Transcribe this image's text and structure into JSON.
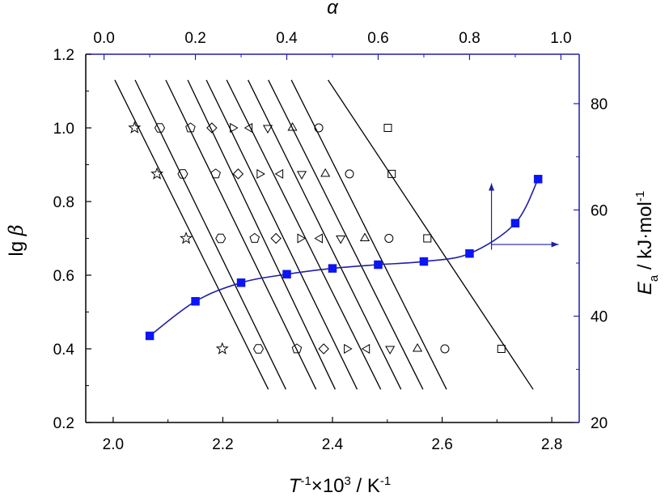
{
  "chart_data": {
    "type": "scatter",
    "axes": {
      "bottom": {
        "label": "T",
        "superscript": "-1",
        "label_rest": "×10",
        "superscript2": "3",
        "unit": " / K",
        "unit_sup": "-1",
        "range": [
          1.95,
          2.85
        ],
        "ticks": [
          "2.0",
          "2.2",
          "2.4",
          "2.6",
          "2.8"
        ],
        "tick_values": [
          2.0,
          2.2,
          2.4,
          2.6,
          2.8
        ]
      },
      "left": {
        "label": "lg ",
        "label_greek": "β",
        "range": [
          0.2,
          1.2
        ],
        "ticks": [
          "0.2",
          "0.4",
          "0.6",
          "0.8",
          "1.0",
          "1.2"
        ],
        "tick_values": [
          0.2,
          0.4,
          0.6,
          0.8,
          1.0,
          1.2
        ]
      },
      "top": {
        "label": "α",
        "range": [
          -0.04,
          1.04
        ],
        "ticks": [
          "0.0",
          "0.2",
          "0.4",
          "0.6",
          "0.8",
          "1.0"
        ],
        "tick_values": [
          0.0,
          0.2,
          0.4,
          0.6,
          0.8,
          1.0
        ]
      },
      "right": {
        "label": "E",
        "subscript": "a",
        "unit": " / kJ·mol",
        "unit_sup": "-1",
        "range": [
          20,
          89.3
        ],
        "ticks": [
          "20",
          "40",
          "60",
          "80"
        ],
        "tick_values": [
          20,
          40,
          60,
          80
        ]
      }
    },
    "grid": false,
    "colors": {
      "axis_left_bottom": "#000000",
      "axis_right_top": "#1f1fa8",
      "ea_series": "#1f1fa8",
      "ea_marker": "#0a14ff"
    },
    "markers": [
      "star",
      "hexagon",
      "pentagon",
      "diamond",
      "triangle-right",
      "triangle-left",
      "triangle-down",
      "triangle-up",
      "circle",
      "square"
    ],
    "isoconversional_lines": [
      [
        [
          2.003,
          1.13
        ],
        [
          2.283,
          0.29
        ]
      ],
      [
        [
          2.04,
          1.13
        ],
        [
          2.315,
          0.29
        ]
      ],
      [
        [
          2.096,
          1.13
        ],
        [
          2.37,
          0.29
        ]
      ],
      [
        [
          2.136,
          1.13
        ],
        [
          2.405,
          0.29
        ]
      ],
      [
        [
          2.17,
          1.13
        ],
        [
          2.445,
          0.29
        ]
      ],
      [
        [
          2.207,
          1.13
        ],
        [
          2.488,
          0.29
        ]
      ],
      [
        [
          2.246,
          1.13
        ],
        [
          2.525,
          0.29
        ]
      ],
      [
        [
          2.283,
          1.13
        ],
        [
          2.565,
          0.29
        ]
      ],
      [
        [
          2.325,
          1.13
        ],
        [
          2.608,
          0.29
        ]
      ],
      [
        [
          2.392,
          1.13
        ],
        [
          2.766,
          0.29
        ]
      ]
    ],
    "experimental_points": [
      {
        "lg_beta": 1.0,
        "x": [
          2.039,
          2.085,
          2.141,
          2.18,
          2.218,
          2.249,
          2.282,
          2.327,
          2.375,
          2.501
        ]
      },
      {
        "lg_beta": 0.875,
        "x": [
          2.08,
          2.127,
          2.187,
          2.228,
          2.267,
          2.305,
          2.344,
          2.387,
          2.431,
          2.508
        ]
      },
      {
        "lg_beta": 0.7,
        "x": [
          2.133,
          2.196,
          2.258,
          2.297,
          2.341,
          2.377,
          2.415,
          2.459,
          2.503,
          2.573
        ]
      },
      {
        "lg_beta": 0.4,
        "x": [
          2.199,
          2.265,
          2.335,
          2.384,
          2.426,
          2.463,
          2.505,
          2.555,
          2.605,
          2.708
        ]
      }
    ],
    "ea_series": {
      "alpha": [
        0.1,
        0.2,
        0.3,
        0.4,
        0.5,
        0.6,
        0.7,
        0.8,
        0.9,
        0.95
      ],
      "Ea": [
        36.3,
        42.8,
        46.3,
        47.9,
        49.0,
        49.7,
        50.3,
        51.8,
        57.5,
        65.8
      ]
    },
    "arrows": [
      {
        "from": [
          0.848,
          52.5
        ],
        "to": [
          0.848,
          65.0
        ]
      },
      {
        "from": [
          0.848,
          53.5
        ],
        "to": [
          0.995,
          53.5
        ]
      }
    ]
  }
}
